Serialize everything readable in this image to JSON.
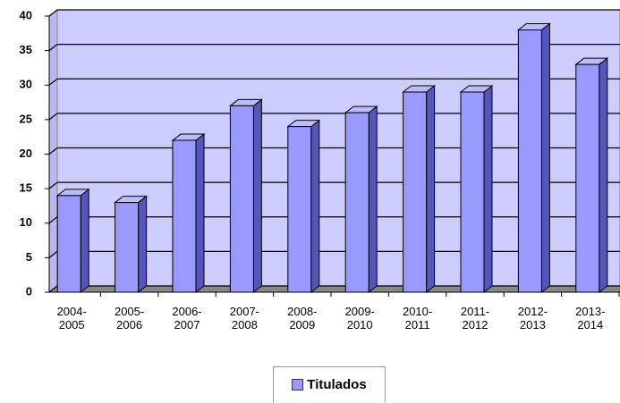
{
  "chart_data": {
    "type": "bar",
    "categories": [
      "2004-2005",
      "2005-2006",
      "2006-2007",
      "2007-2008",
      "2008-2009",
      "2009-2010",
      "2010-2011",
      "2011-2012",
      "2012-2013",
      "2013-2014"
    ],
    "series": [
      {
        "name": "Titulados",
        "color": "#9999ff",
        "values": [
          14,
          13,
          22,
          27,
          24,
          26,
          29,
          29,
          38,
          33
        ]
      }
    ],
    "ylim": [
      0,
      40
    ],
    "yticks": [
      0,
      5,
      10,
      15,
      20,
      25,
      30,
      35,
      40
    ],
    "grid": true,
    "legend": "bottom"
  }
}
